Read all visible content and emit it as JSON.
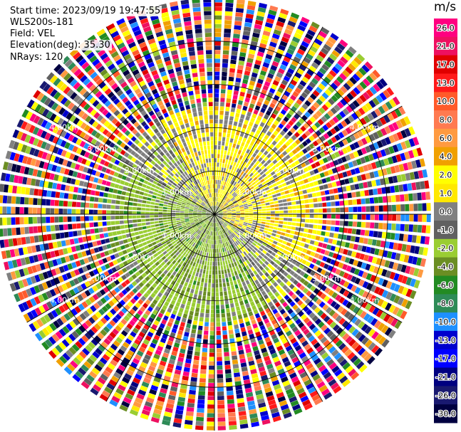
{
  "header": {
    "start_time": "Start time: 2023/09/19 19:47:55",
    "site": "WLS200s-181",
    "field": "Field: VEL",
    "elevation": "Elevation(deg): 35.30",
    "nrays": "NRays: 120"
  },
  "chart_data": {
    "type": "heatmap",
    "subtype": "polar PPI scan",
    "field": "VEL",
    "units": "m/s",
    "range_ring_labels": [
      "1.00km",
      "2.00km",
      "3.00km",
      "4.00km"
    ],
    "range_rings_km": [
      1,
      2,
      3,
      4
    ],
    "max_range_km": 5.0,
    "nrays": 120,
    "colorbar": {
      "unit": "m/s",
      "ticks": [
        "26.0",
        "21.0",
        "17.0",
        "13.0",
        "10.0",
        "8.0",
        "6.0",
        "4.0",
        "2.0",
        "1.0",
        "0.0",
        "-1.0",
        "-2.0",
        "-4.0",
        "-6.0",
        "-8.0",
        "-10.0",
        "-13.0",
        "-17.0",
        "-21.0",
        "-26.0",
        "-30.0"
      ],
      "colors": [
        "#ff0080",
        "#ee1060",
        "#e00000",
        "#ff1a1a",
        "#ff5a2a",
        "#ff7a50",
        "#ff9a40",
        "#f0a000",
        "#ffff00",
        "#ffe800",
        "#808080",
        "#606060",
        "#9acd32",
        "#6b8e23",
        "#228b22",
        "#2e8b57",
        "#1e90ff",
        "#0000cd",
        "#0000ff",
        "#000080",
        "#191970",
        "#000040"
      ]
    }
  }
}
